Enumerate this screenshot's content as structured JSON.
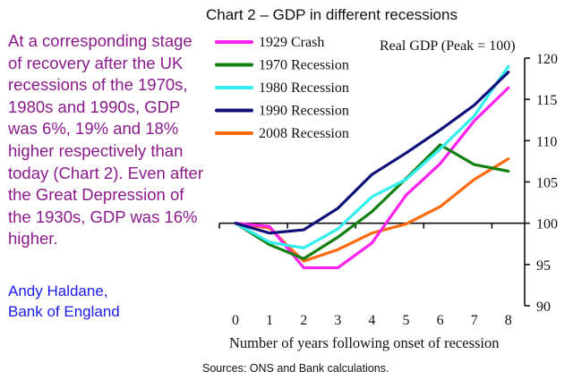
{
  "side_text": "At a corresponding stage of recovery after the UK recessions of the 1970s, 1980s and 1990s, GDP was 6%, 19% and 18% higher respectively than today (Chart 2). Even after the Great Depression of the 1930s, GDP was 16% higher.",
  "author": [
    "Andy Haldane,",
    "Bank of England"
  ],
  "source": "Sources: ONS and Bank calculations.",
  "chart_data": {
    "type": "line",
    "title": "Chart 2 – GDP in different recessions",
    "ylabel": "Real GDP (Peak = 100)",
    "xlabel": "Number of years following onset of recession",
    "x": [
      0,
      1,
      2,
      3,
      4,
      5,
      6,
      7,
      8
    ],
    "ylim": [
      90,
      120
    ],
    "yticks": [
      90,
      95,
      100,
      105,
      110,
      115,
      120
    ],
    "legend": "top-left",
    "grid": false,
    "series": [
      {
        "name": "1929 Crash",
        "color": "#ff22ee",
        "values": [
          100,
          99.6,
          94.6,
          94.6,
          97.6,
          103.4,
          107.2,
          112.4,
          116.4
        ]
      },
      {
        "name": "1970 Recession",
        "color": "#128012",
        "values": [
          100,
          97.4,
          95.7,
          98.3,
          101.4,
          105.4,
          109.5,
          107.1,
          106.3
        ]
      },
      {
        "name": "1980 Recession",
        "color": "#33eeee",
        "values": [
          100,
          97.7,
          97.0,
          99.3,
          103.2,
          105.3,
          109.0,
          113.0,
          119.0
        ]
      },
      {
        "name": "1990 Recession",
        "color": "#10107a",
        "values": [
          100,
          98.8,
          99.2,
          101.8,
          105.9,
          108.5,
          111.3,
          114.3,
          118.3
        ]
      },
      {
        "name": "2008 Recession",
        "color": "#ff6a10",
        "values": [
          100,
          99.4,
          95.4,
          96.8,
          98.8,
          99.9,
          102.0,
          105.3,
          107.8
        ]
      }
    ]
  }
}
